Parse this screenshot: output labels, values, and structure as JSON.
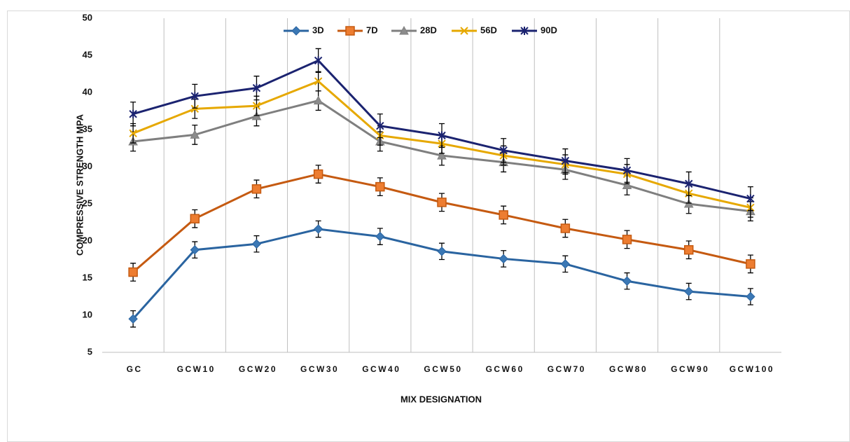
{
  "chart_data": {
    "type": "line",
    "x_label": "MIX DESIGNATION",
    "y_label": "COMPRESSIVE STRENGTH MPA",
    "categories": [
      "GC",
      "GCW10",
      "GCW20",
      "GCW30",
      "GCW40",
      "GCW50",
      "GCW60",
      "GCW70",
      "GCW80",
      "GCW90",
      "GCW100"
    ],
    "ylim": [
      5,
      50
    ],
    "yticks": [
      5,
      10,
      15,
      20,
      25,
      30,
      35,
      40,
      45,
      50
    ],
    "grid": "vertical",
    "legend": "top",
    "series": [
      {
        "name": "3D",
        "color": "#2a64a0",
        "marker": "diamond",
        "values": [
          9.5,
          18.8,
          19.6,
          21.6,
          20.6,
          18.6,
          17.6,
          16.9,
          14.6,
          13.2,
          12.5
        ],
        "errors": [
          1.1,
          1.1,
          1.1,
          1.1,
          1.1,
          1.1,
          1.1,
          1.1,
          1.1,
          1.1,
          1.1
        ]
      },
      {
        "name": "7D",
        "color": "#c55a11",
        "marker": "square",
        "values": [
          15.8,
          23.0,
          27.0,
          29.0,
          27.3,
          25.2,
          23.5,
          21.7,
          20.2,
          18.8,
          16.9
        ],
        "errors": [
          1.2,
          1.2,
          1.2,
          1.2,
          1.2,
          1.2,
          1.2,
          1.2,
          1.2,
          1.2,
          1.2
        ]
      },
      {
        "name": "28D",
        "color": "#7f7f7f",
        "marker": "triangle",
        "values": [
          33.4,
          34.3,
          36.8,
          38.9,
          33.4,
          31.5,
          30.6,
          29.6,
          27.5,
          25.0,
          24.0
        ],
        "errors": [
          1.3,
          1.3,
          1.3,
          1.3,
          1.3,
          1.3,
          1.3,
          1.3,
          1.3,
          1.3,
          1.3
        ]
      },
      {
        "name": "56D",
        "color": "#e6a800",
        "marker": "x",
        "values": [
          34.5,
          37.8,
          38.2,
          41.5,
          34.2,
          33.1,
          31.5,
          30.3,
          29.0,
          26.4,
          24.5
        ],
        "errors": [
          1.3,
          1.3,
          1.3,
          1.3,
          1.3,
          1.3,
          1.3,
          1.3,
          1.3,
          1.3,
          1.3
        ]
      },
      {
        "name": "90D",
        "color": "#1b2370",
        "marker": "star",
        "values": [
          37.1,
          39.5,
          40.6,
          44.3,
          35.5,
          34.2,
          32.2,
          30.8,
          29.5,
          27.7,
          25.7
        ],
        "errors": [
          1.6,
          1.6,
          1.6,
          1.6,
          1.6,
          1.6,
          1.6,
          1.6,
          1.6,
          1.6,
          1.6
        ]
      }
    ]
  }
}
